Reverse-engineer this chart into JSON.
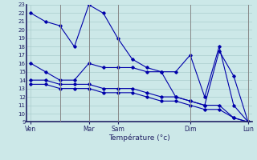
{
  "title": "",
  "xlabel": "Température (°c)",
  "ylabel": "",
  "bg_color": "#cce8e8",
  "grid_color": "#aacccc",
  "line_color": "#0000aa",
  "vline_color": "#888888",
  "ylim": [
    9,
    23
  ],
  "yticks": [
    9,
    10,
    11,
    12,
    13,
    14,
    15,
    16,
    17,
    18,
    19,
    20,
    21,
    22,
    23
  ],
  "xtick_labels": [
    "Ven",
    "Mar",
    "Sam",
    "Dim",
    "Lun"
  ],
  "xtick_positions": [
    0,
    4,
    6,
    11,
    15
  ],
  "vline_positions": [
    2,
    4,
    6,
    11,
    15
  ],
  "total_points": 16,
  "series": {
    "line1": [
      22,
      21,
      20.5,
      18,
      23,
      22,
      19,
      16.5,
      15.5,
      15,
      15,
      17,
      12,
      18,
      11,
      9
    ],
    "line2": [
      16,
      15,
      14,
      14,
      16,
      15.5,
      15.5,
      15.5,
      15,
      15,
      12,
      11.5,
      11,
      17.5,
      14.5,
      9
    ],
    "line3": [
      14,
      14,
      13.5,
      13.5,
      13.5,
      13,
      13,
      13,
      12.5,
      12,
      12,
      11.5,
      11,
      11,
      9.5,
      9
    ],
    "line4": [
      13.5,
      13.5,
      13,
      13,
      13,
      12.5,
      12.5,
      12.5,
      12,
      11.5,
      11.5,
      11,
      10.5,
      10.5,
      9.5,
      9
    ]
  }
}
